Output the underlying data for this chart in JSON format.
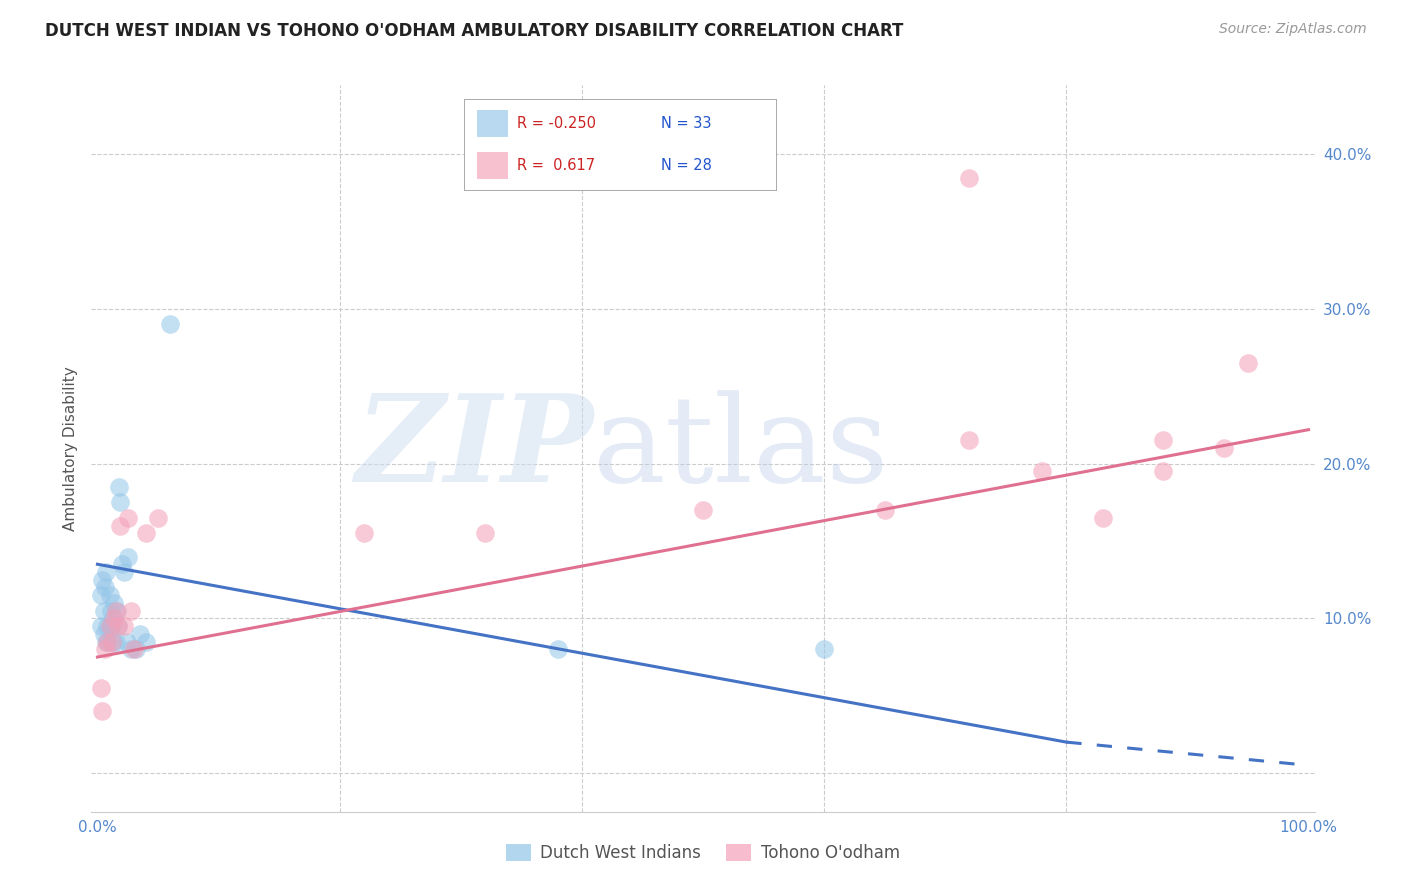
{
  "title": "DUTCH WEST INDIAN VS TOHONO O'ODHAM AMBULATORY DISABILITY CORRELATION CHART",
  "source": "Source: ZipAtlas.com",
  "ylabel": "Ambulatory Disability",
  "xlim": [
    -0.005,
    1.005
  ],
  "ylim": [
    -0.025,
    0.445
  ],
  "xtick_positions": [
    0.0,
    0.2,
    0.4,
    0.6,
    0.8,
    1.0
  ],
  "xticklabels": [
    "0.0%",
    "",
    "",
    "",
    "",
    "100.0%"
  ],
  "ytick_positions": [
    0.0,
    0.1,
    0.2,
    0.3,
    0.4
  ],
  "yticklabels_right": [
    "",
    "10.0%",
    "20.0%",
    "30.0%",
    "40.0%"
  ],
  "blue_color": "#92c5e8",
  "pink_color": "#f4a0b8",
  "blue_line_color": "#4472c4",
  "pink_line_color": "#e07090",
  "legend_blue_label": "Dutch West Indians",
  "legend_pink_label": "Tohono O'odham",
  "R_blue": -0.25,
  "N_blue": 33,
  "R_pink": 0.617,
  "N_pink": 28,
  "blue_scatter_x": [
    0.003,
    0.003,
    0.004,
    0.005,
    0.005,
    0.006,
    0.007,
    0.007,
    0.008,
    0.009,
    0.01,
    0.01,
    0.011,
    0.012,
    0.013,
    0.013,
    0.014,
    0.015,
    0.016,
    0.017,
    0.018,
    0.019,
    0.02,
    0.022,
    0.024,
    0.025,
    0.028,
    0.032,
    0.035,
    0.04,
    0.06,
    0.38,
    0.6
  ],
  "blue_scatter_y": [
    0.115,
    0.095,
    0.125,
    0.09,
    0.105,
    0.12,
    0.085,
    0.13,
    0.095,
    0.085,
    0.095,
    0.115,
    0.105,
    0.095,
    0.085,
    0.1,
    0.11,
    0.085,
    0.105,
    0.095,
    0.185,
    0.175,
    0.135,
    0.13,
    0.085,
    0.14,
    0.08,
    0.08,
    0.09,
    0.085,
    0.29,
    0.08,
    0.08
  ],
  "pink_scatter_x": [
    0.003,
    0.004,
    0.006,
    0.008,
    0.01,
    0.012,
    0.014,
    0.015,
    0.017,
    0.019,
    0.022,
    0.025,
    0.028,
    0.03,
    0.04,
    0.05,
    0.22,
    0.32,
    0.5,
    0.65,
    0.72,
    0.78,
    0.83,
    0.88,
    0.88,
    0.93,
    0.95,
    0.72
  ],
  "pink_scatter_y": [
    0.055,
    0.04,
    0.08,
    0.085,
    0.095,
    0.085,
    0.1,
    0.105,
    0.095,
    0.16,
    0.095,
    0.165,
    0.105,
    0.08,
    0.155,
    0.165,
    0.155,
    0.155,
    0.17,
    0.17,
    0.215,
    0.195,
    0.165,
    0.215,
    0.195,
    0.21,
    0.265,
    0.385
  ],
  "blue_line_y0": 0.135,
  "blue_line_y1": 0.02,
  "blue_line_solid_x1": 0.8,
  "blue_line_dash_x0": 0.8,
  "blue_line_dash_x1": 1.0,
  "blue_line_dash_y0": 0.02,
  "blue_line_dash_y1": 0.005,
  "pink_line_y0": 0.075,
  "pink_line_y1": 0.222,
  "background_color": "#ffffff",
  "grid_color": "#cccccc",
  "title_color": "#222222",
  "axis_label_color": "#555555",
  "tick_color": "#5588cc",
  "source_color": "#999999"
}
